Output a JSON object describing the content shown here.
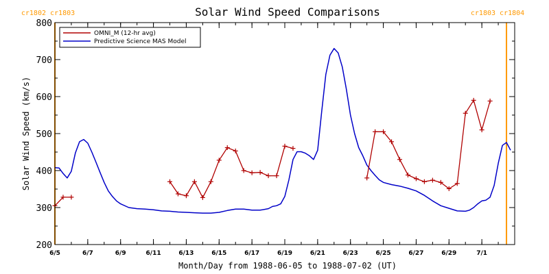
{
  "colors": {
    "omni": "#b00000",
    "model": "#0000c8",
    "carrington": "#ff9900",
    "axis": "#000000"
  },
  "chart_data": {
    "type": "line",
    "title": "Solar Wind Speed Comparisons",
    "xlabel": "Month/Day from 1988-06-05 to 1988-07-02 (UT)",
    "ylabel": "Solar Wind Speed (km/s)",
    "xlim": [
      "1988-06-05",
      "1988-07-03"
    ],
    "ylim": [
      200,
      800
    ],
    "y_ticks": [
      200,
      300,
      400,
      500,
      600,
      700,
      800
    ],
    "x_ticks": [
      {
        "date": "1988-06-05",
        "label": "6/5"
      },
      {
        "date": "1988-06-07",
        "label": "6/7"
      },
      {
        "date": "1988-06-09",
        "label": "6/9"
      },
      {
        "date": "1988-06-11",
        "label": "6/11"
      },
      {
        "date": "1988-06-13",
        "label": "6/13"
      },
      {
        "date": "1988-06-15",
        "label": "6/15"
      },
      {
        "date": "1988-06-17",
        "label": "6/17"
      },
      {
        "date": "1988-06-19",
        "label": "6/19"
      },
      {
        "date": "1988-06-21",
        "label": "6/21"
      },
      {
        "date": "1988-06-23",
        "label": "6/23"
      },
      {
        "date": "1988-06-25",
        "label": "6/25"
      },
      {
        "date": "1988-06-27",
        "label": "6/27"
      },
      {
        "date": "1988-06-29",
        "label": "6/29"
      },
      {
        "date": "1988-07-01",
        "label": "7/1"
      }
    ],
    "grid": false,
    "legend": "top-left",
    "carrington_markers": [
      {
        "date": "1988-06-05T00:00",
        "label": "cr1802 cr1803",
        "side": "left"
      },
      {
        "date": "1988-07-02T12:00",
        "label": "cr1803 cr1804",
        "side": "right"
      }
    ],
    "series": [
      {
        "name": "OMNI_M (12-hr avg)",
        "style": "line-plus",
        "segments": [
          [
            [
              "1988-06-05T00:00",
              305
            ],
            [
              "1988-06-05T12:00",
              328
            ],
            [
              "1988-06-06T00:00",
              328
            ]
          ],
          [
            [
              "1988-06-12T00:00",
              370
            ],
            [
              "1988-06-12T12:00",
              337
            ],
            [
              "1988-06-13T00:00",
              332
            ],
            [
              "1988-06-13T12:00",
              370
            ],
            [
              "1988-06-14T00:00",
              327
            ],
            [
              "1988-06-14T12:00",
              370
            ],
            [
              "1988-06-15T00:00",
              428
            ],
            [
              "1988-06-15T12:00",
              462
            ],
            [
              "1988-06-16T00:00",
              453
            ],
            [
              "1988-06-16T12:00",
              400
            ],
            [
              "1988-06-17T00:00",
              394
            ],
            [
              "1988-06-17T12:00",
              395
            ],
            [
              "1988-06-18T00:00",
              386
            ],
            [
              "1988-06-18T12:00",
              386
            ],
            [
              "1988-06-19T00:00",
              466
            ],
            [
              "1988-06-19T12:00",
              460
            ]
          ],
          [
            [
              "1988-06-24T00:00",
              380
            ],
            [
              "1988-06-24T12:00",
              505
            ],
            [
              "1988-06-25T00:00",
              505
            ],
            [
              "1988-06-25T12:00",
              478
            ],
            [
              "1988-06-26T00:00",
              430
            ],
            [
              "1988-06-26T12:00",
              388
            ],
            [
              "1988-06-27T00:00",
              378
            ],
            [
              "1988-06-27T12:00",
              370
            ],
            [
              "1988-06-28T00:00",
              374
            ],
            [
              "1988-06-28T12:00",
              368
            ],
            [
              "1988-06-29T00:00",
              351
            ],
            [
              "1988-06-29T12:00",
              365
            ],
            [
              "1988-06-30T00:00",
              555
            ],
            [
              "1988-06-30T12:00",
              590
            ],
            [
              "1988-07-01T00:00",
              510
            ],
            [
              "1988-07-01T12:00",
              588
            ]
          ]
        ]
      },
      {
        "name": "Predictive Science MAS Model",
        "style": "line",
        "points": [
          [
            "1988-06-05T00:00",
            408
          ],
          [
            "1988-06-05T06:00",
            407
          ],
          [
            "1988-06-05T12:00",
            392
          ],
          [
            "1988-06-05T18:00",
            380
          ],
          [
            "1988-06-06T00:00",
            398
          ],
          [
            "1988-06-06T06:00",
            448
          ],
          [
            "1988-06-06T12:00",
            478
          ],
          [
            "1988-06-06T18:00",
            484
          ],
          [
            "1988-06-07T00:00",
            474
          ],
          [
            "1988-06-07T06:00",
            450
          ],
          [
            "1988-06-07T12:00",
            423
          ],
          [
            "1988-06-07T18:00",
            395
          ],
          [
            "1988-06-08T00:00",
            368
          ],
          [
            "1988-06-08T06:00",
            345
          ],
          [
            "1988-06-08T12:00",
            330
          ],
          [
            "1988-06-08T18:00",
            318
          ],
          [
            "1988-06-09T00:00",
            310
          ],
          [
            "1988-06-09T12:00",
            300
          ],
          [
            "1988-06-10T00:00",
            297
          ],
          [
            "1988-06-10T12:00",
            296
          ],
          [
            "1988-06-11T00:00",
            294
          ],
          [
            "1988-06-11T12:00",
            291
          ],
          [
            "1988-06-12T00:00",
            290
          ],
          [
            "1988-06-12T12:00",
            288
          ],
          [
            "1988-06-13T00:00",
            287
          ],
          [
            "1988-06-13T12:00",
            286
          ],
          [
            "1988-06-14T00:00",
            285
          ],
          [
            "1988-06-14T12:00",
            285
          ],
          [
            "1988-06-15T00:00",
            287
          ],
          [
            "1988-06-15T12:00",
            292
          ],
          [
            "1988-06-16T00:00",
            296
          ],
          [
            "1988-06-16T12:00",
            296
          ],
          [
            "1988-06-17T00:00",
            293
          ],
          [
            "1988-06-17T12:00",
            293
          ],
          [
            "1988-06-18T00:00",
            297
          ],
          [
            "1988-06-18T06:00",
            303
          ],
          [
            "1988-06-18T12:00",
            305
          ],
          [
            "1988-06-18T18:00",
            310
          ],
          [
            "1988-06-19T00:00",
            330
          ],
          [
            "1988-06-19T06:00",
            375
          ],
          [
            "1988-06-19T12:00",
            430
          ],
          [
            "1988-06-19T18:00",
            451
          ],
          [
            "1988-06-20T00:00",
            451
          ],
          [
            "1988-06-20T06:00",
            447
          ],
          [
            "1988-06-20T12:00",
            440
          ],
          [
            "1988-06-20T18:00",
            430
          ],
          [
            "1988-06-21T00:00",
            455
          ],
          [
            "1988-06-21T06:00",
            560
          ],
          [
            "1988-06-21T12:00",
            660
          ],
          [
            "1988-06-21T18:00",
            712
          ],
          [
            "1988-06-22T00:00",
            730
          ],
          [
            "1988-06-22T06:00",
            718
          ],
          [
            "1988-06-22T12:00",
            680
          ],
          [
            "1988-06-22T18:00",
            620
          ],
          [
            "1988-06-23T00:00",
            550
          ],
          [
            "1988-06-23T06:00",
            500
          ],
          [
            "1988-06-23T12:00",
            462
          ],
          [
            "1988-06-23T18:00",
            440
          ],
          [
            "1988-06-24T00:00",
            415
          ],
          [
            "1988-06-24T06:00",
            400
          ],
          [
            "1988-06-24T12:00",
            387
          ],
          [
            "1988-06-24T18:00",
            375
          ],
          [
            "1988-06-25T00:00",
            368
          ],
          [
            "1988-06-25T12:00",
            362
          ],
          [
            "1988-06-26T00:00",
            358
          ],
          [
            "1988-06-26T12:00",
            352
          ],
          [
            "1988-06-27T00:00",
            345
          ],
          [
            "1988-06-27T12:00",
            333
          ],
          [
            "1988-06-28T00:00",
            318
          ],
          [
            "1988-06-28T12:00",
            305
          ],
          [
            "1988-06-29T00:00",
            298
          ],
          [
            "1988-06-29T12:00",
            291
          ],
          [
            "1988-06-30T00:00",
            290
          ],
          [
            "1988-06-30T06:00",
            293
          ],
          [
            "1988-06-30T12:00",
            300
          ],
          [
            "1988-06-30T18:00",
            310
          ],
          [
            "1988-07-01T00:00",
            318
          ],
          [
            "1988-07-01T06:00",
            320
          ],
          [
            "1988-07-01T12:00",
            328
          ],
          [
            "1988-07-01T18:00",
            360
          ],
          [
            "1988-07-02T00:00",
            420
          ],
          [
            "1988-07-02T06:00",
            468
          ],
          [
            "1988-07-02T12:00",
            476
          ],
          [
            "1988-07-02T18:00",
            455
          ]
        ]
      }
    ]
  }
}
